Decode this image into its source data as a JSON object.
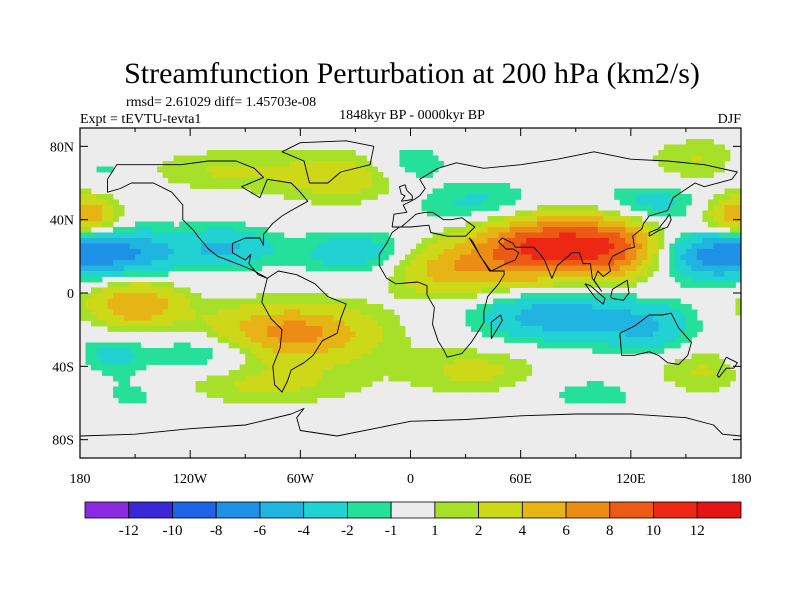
{
  "chart_data": {
    "type": "heatmap",
    "title": "Streamfunction Perturbation at 200 hPa (km2/s)",
    "stats_line": "rmsd= 2.61029 diff= 1.45703e-08",
    "experiment": "Expt = tEVTU-tevta1",
    "period": "1848kyr BP - 0000kyr BP",
    "season": "DJF",
    "x_tick_labels": [
      "180",
      "120W",
      "60W",
      "0",
      "60E",
      "120E",
      "180"
    ],
    "y_tick_labels": [
      "80N",
      "40N",
      "0",
      "40S",
      "80S"
    ],
    "xlim_deg": [
      -180,
      180
    ],
    "ylim_deg": [
      -90,
      90
    ],
    "colorbar": {
      "labels": [
        "-12",
        "-10",
        "-8",
        "-6",
        "-4",
        "-2",
        "-1",
        "1",
        "2",
        "4",
        "6",
        "8",
        "10",
        "12"
      ],
      "levels": [
        -12,
        -10,
        -8,
        -6,
        -4,
        -2,
        -1,
        1,
        2,
        4,
        6,
        8,
        10,
        12
      ],
      "colors": [
        "#8a2be2",
        "#3a28d8",
        "#1e64e6",
        "#1e90e6",
        "#20b4e0",
        "#20d2d2",
        "#25e09a",
        "#ececec",
        "#a6e028",
        "#ccd818",
        "#e6b414",
        "#ec8c14",
        "#ec5a14",
        "#ec2814",
        "#e61414"
      ]
    },
    "anomaly_centers": [
      {
        "lon": 75,
        "lat": 25,
        "value": 11,
        "sx": 30,
        "sy": 13
      },
      {
        "lon": 20,
        "lat": 12,
        "value": 4.5,
        "sx": 22,
        "sy": 10
      },
      {
        "lon": 115,
        "lat": 25,
        "value": 5,
        "sx": 18,
        "sy": 12
      },
      {
        "lon": -65,
        "lat": -22,
        "value": 7,
        "sx": 32,
        "sy": 11
      },
      {
        "lon": -150,
        "lat": -6,
        "value": 6,
        "sx": 18,
        "sy": 9
      },
      {
        "lon": -35,
        "lat": 63,
        "value": 3,
        "sx": 28,
        "sy": 10
      },
      {
        "lon": -105,
        "lat": 67,
        "value": 2,
        "sx": 30,
        "sy": 8
      },
      {
        "lon": 35,
        "lat": -42,
        "value": 2.5,
        "sx": 25,
        "sy": 9
      },
      {
        "lon": -80,
        "lat": -50,
        "value": 2.2,
        "sx": 40,
        "sy": 8
      },
      {
        "lon": 160,
        "lat": -42,
        "value": 2.3,
        "sx": 22,
        "sy": 10
      },
      {
        "lon": 160,
        "lat": 72,
        "value": 2.2,
        "sx": 22,
        "sy": 9
      },
      {
        "lon": 175,
        "lat": 42,
        "value": 3.5,
        "sx": 14,
        "sy": 8
      },
      {
        "lon": -175,
        "lat": 42,
        "value": 3.5,
        "sx": 12,
        "sy": 8
      },
      {
        "lon": -160,
        "lat": 22,
        "value": -6.5,
        "sx": 25,
        "sy": 9
      },
      {
        "lon": 160,
        "lat": 20,
        "value": -5.5,
        "sx": 20,
        "sy": 9
      },
      {
        "lon": -100,
        "lat": 25,
        "value": -4,
        "sx": 18,
        "sy": 8
      },
      {
        "lon": -30,
        "lat": 22,
        "value": -3.5,
        "sx": 22,
        "sy": 8
      },
      {
        "lon": 80,
        "lat": -12,
        "value": -5.5,
        "sx": 30,
        "sy": 10
      },
      {
        "lon": 130,
        "lat": -20,
        "value": -3.5,
        "sx": 18,
        "sy": 10
      },
      {
        "lon": -110,
        "lat": -32,
        "value": -3,
        "sx": 22,
        "sy": 8
      },
      {
        "lon": -165,
        "lat": -35,
        "value": -3,
        "sx": 14,
        "sy": 8
      },
      {
        "lon": 40,
        "lat": 48,
        "value": -3,
        "sx": 28,
        "sy": 9
      },
      {
        "lon": 130,
        "lat": 48,
        "value": -3.2,
        "sx": 22,
        "sy": 8
      },
      {
        "lon": 0,
        "lat": 70,
        "value": -2.5,
        "sx": 15,
        "sy": 8
      },
      {
        "lon": -170,
        "lat": 68,
        "value": -2,
        "sx": 15,
        "sy": 8
      },
      {
        "lon": -150,
        "lat": -55,
        "value": -1.6,
        "sx": 20,
        "sy": 7
      },
      {
        "lon": 100,
        "lat": -55,
        "value": -1.5,
        "sx": 25,
        "sy": 7
      }
    ]
  }
}
